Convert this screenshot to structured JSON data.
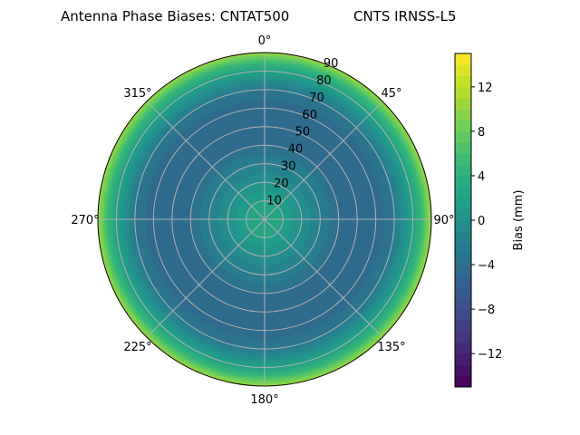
{
  "chart_data": {
    "type": "heatmap",
    "subtype": "polar-contour",
    "title_left": "Antenna Phase Biases: CNTAT500",
    "title_right": "CNTS IRNSS-L5",
    "angular_ticks": [
      "0°",
      "45°",
      "90°",
      "135°",
      "180°",
      "225°",
      "270°",
      "315°"
    ],
    "radial_ticks": [
      "10",
      "20",
      "30",
      "40",
      "50",
      "60",
      "70",
      "80",
      "90"
    ],
    "radial_range": [
      0,
      90
    ],
    "angular_direction": "clockwise",
    "zero_location": "north",
    "grid": true,
    "colormap": "viridis",
    "colorbar": {
      "label": "Bias (mm)",
      "range": [
        -15,
        15
      ],
      "ticks": [
        "−12",
        "−8",
        "−4",
        "0",
        "4",
        "8",
        "12"
      ],
      "tick_values": [
        -12,
        -8,
        -4,
        0,
        4,
        8,
        12
      ],
      "levels_step": 1
    },
    "radial_profile": {
      "r": [
        0,
        10,
        20,
        30,
        40,
        50,
        60,
        70,
        80,
        85,
        90
      ],
      "bias_mm": [
        3,
        2,
        0,
        -2,
        -4,
        -5,
        -5,
        -3,
        2,
        5,
        10
      ]
    }
  }
}
